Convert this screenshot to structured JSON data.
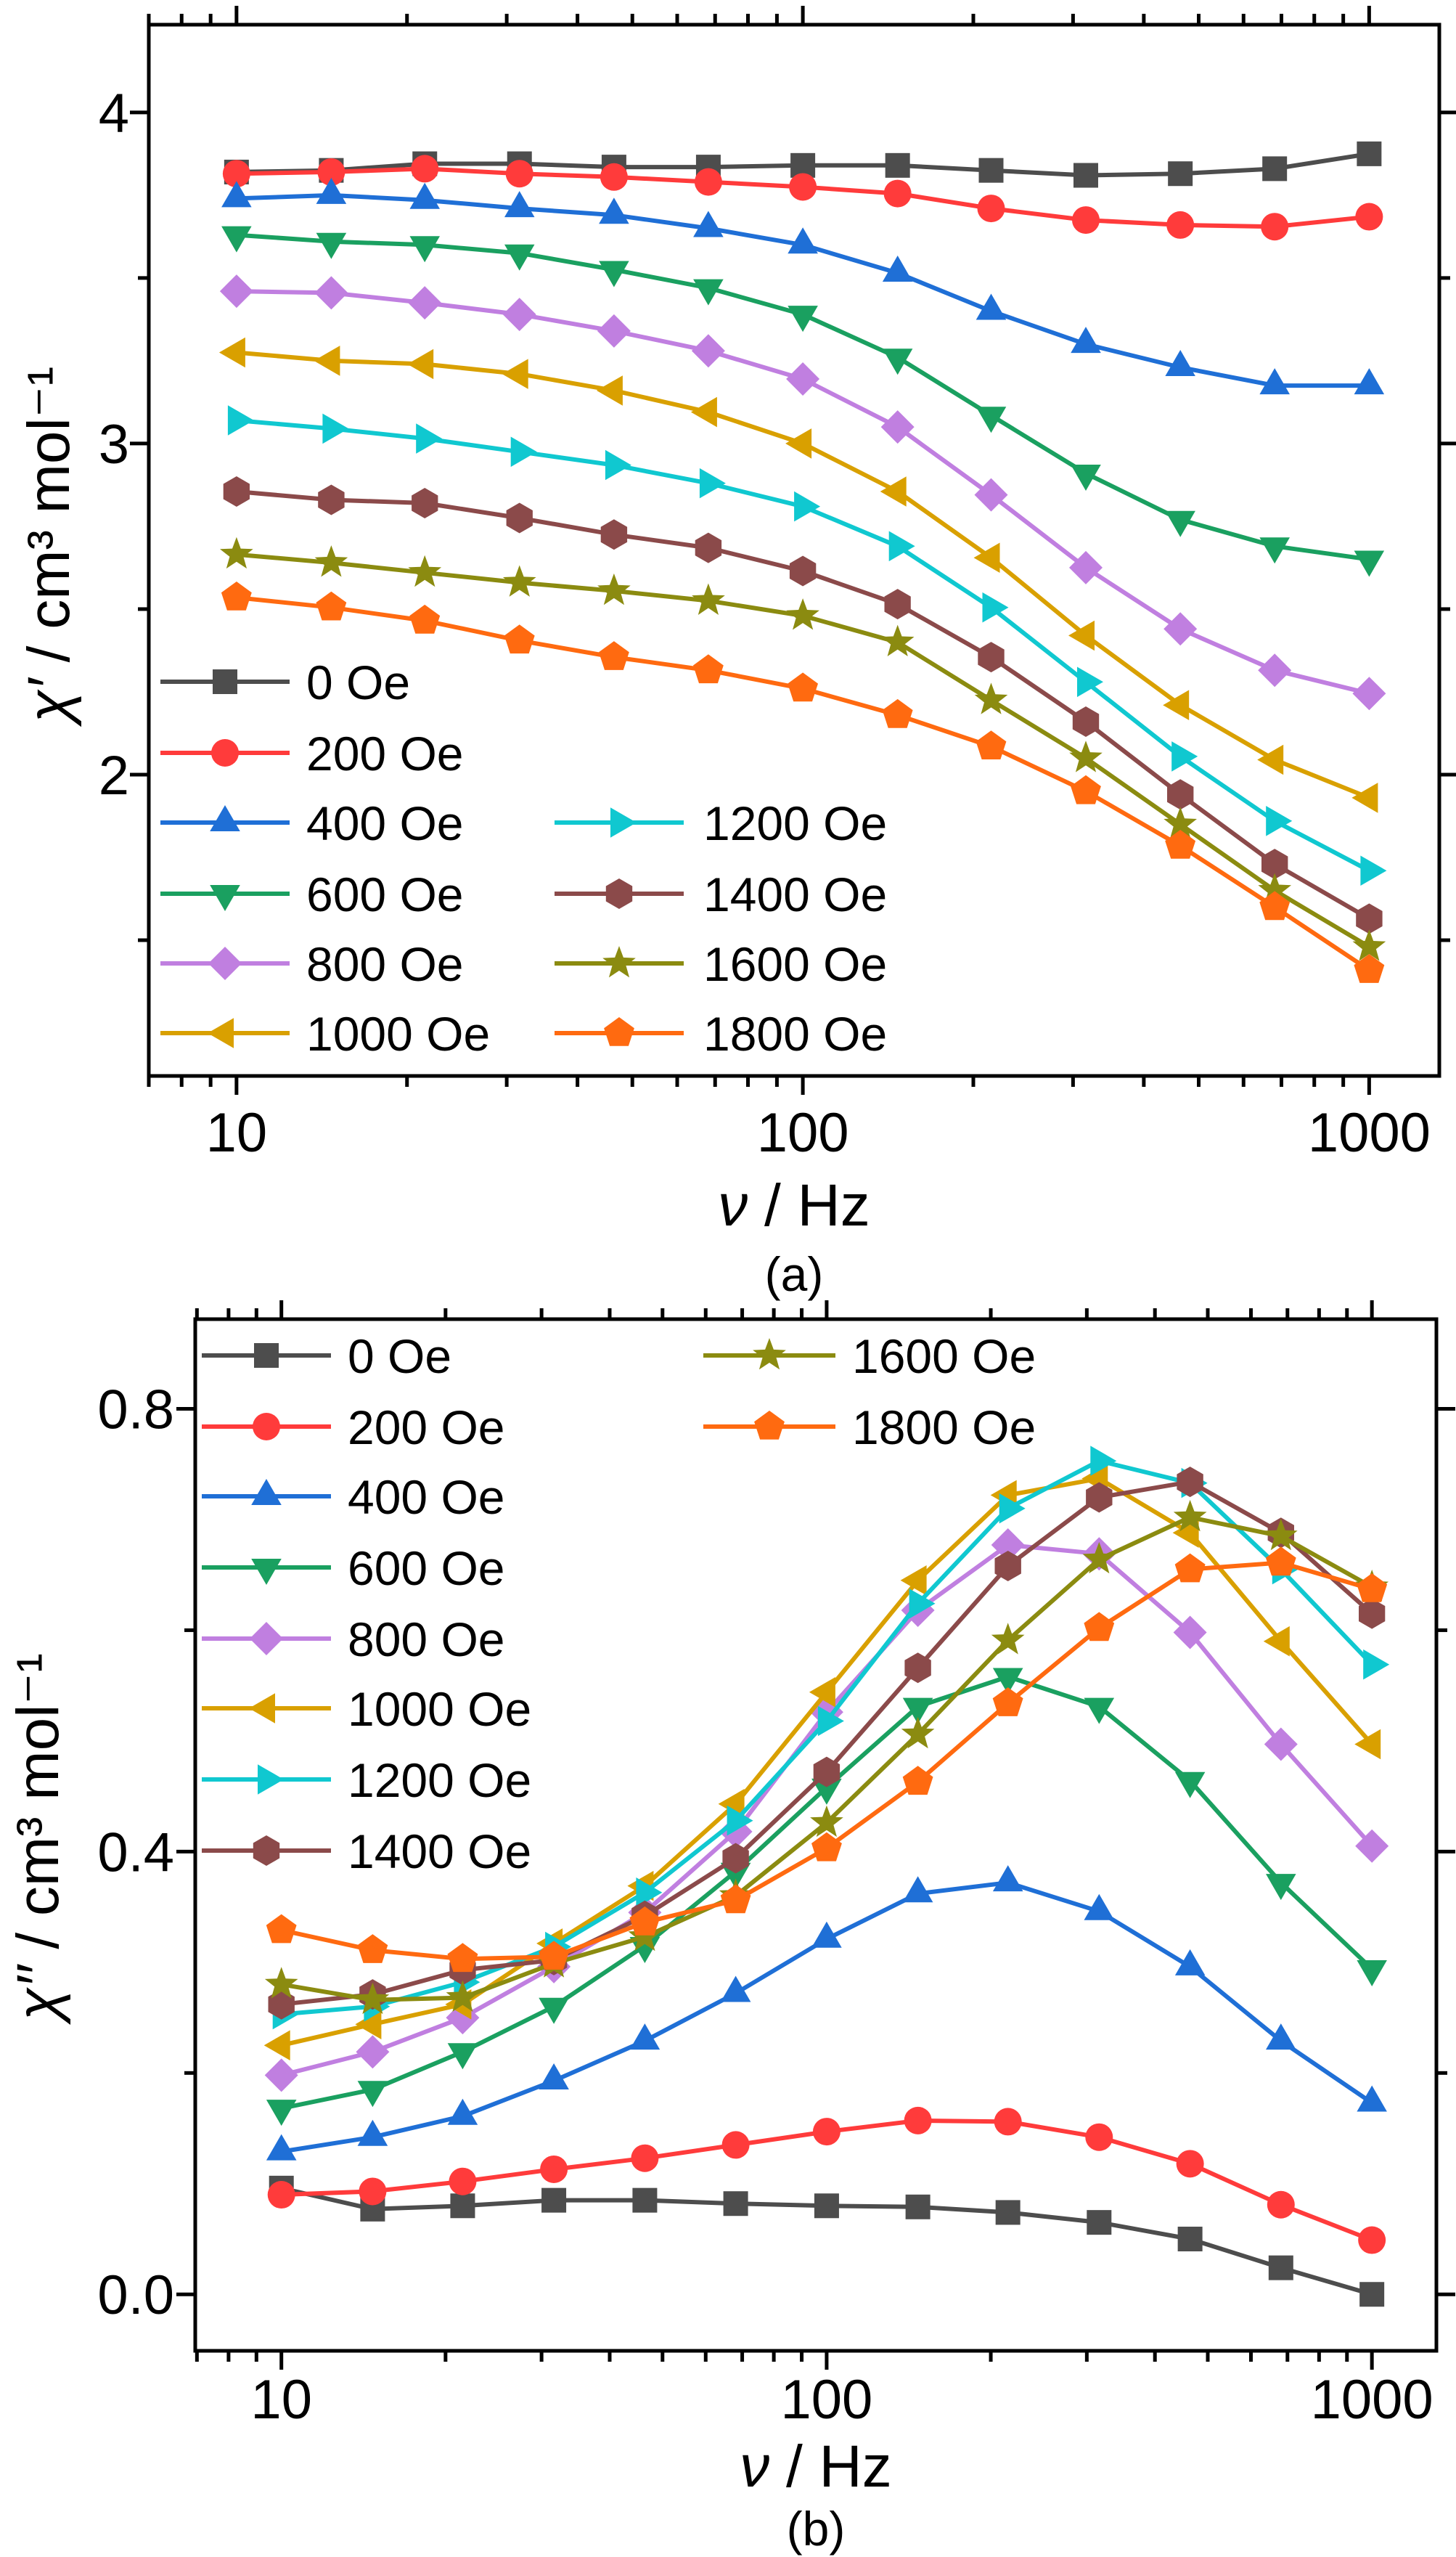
{
  "chart_data": [
    {
      "type": "line",
      "panel": "a",
      "caption": "(a)",
      "xlabel_sym": "ν",
      "xlabel_unit": " / Hz",
      "ylabel_sym": "χ′",
      "ylabel_unit": " / cm³ mol⁻¹",
      "xscale": "log",
      "xlim": [
        7,
        1330
      ],
      "ylim": [
        1.09,
        4.265
      ],
      "xticks": [
        10,
        100,
        1000
      ],
      "xtick_labels": [
        "10",
        "100",
        "1000"
      ],
      "yticks": [
        2,
        3,
        4
      ],
      "ytick_labels": [
        "2",
        "3",
        "4"
      ],
      "yminor": [
        1.5,
        2.5,
        3.5
      ],
      "legend": "bottom-left, two columns",
      "x": [
        10,
        14.7,
        21.5,
        31.6,
        46.4,
        68.1,
        100,
        147,
        215,
        316,
        464,
        681,
        1000
      ],
      "series": [
        {
          "name": "0 Oe",
          "color": "#4d4d4d",
          "marker": "square",
          "values": [
            3.82,
            3.825,
            3.845,
            3.845,
            3.835,
            3.835,
            3.84,
            3.84,
            3.825,
            3.81,
            3.815,
            3.83,
            3.875
          ]
        },
        {
          "name": "200 Oe",
          "color": "#ff3b3b",
          "marker": "circle",
          "values": [
            3.815,
            3.82,
            3.83,
            3.815,
            3.805,
            3.79,
            3.775,
            3.755,
            3.71,
            3.675,
            3.66,
            3.655,
            3.685
          ]
        },
        {
          "name": "400 Oe",
          "color": "#1f6fd6",
          "marker": "triangle-up",
          "values": [
            3.74,
            3.75,
            3.735,
            3.71,
            3.69,
            3.65,
            3.6,
            3.515,
            3.4,
            3.3,
            3.23,
            3.175,
            3.175
          ]
        },
        {
          "name": "600 Oe",
          "color": "#1aa060",
          "marker": "triangle-down",
          "values": [
            3.63,
            3.61,
            3.6,
            3.575,
            3.525,
            3.47,
            3.39,
            3.26,
            3.085,
            2.91,
            2.77,
            2.69,
            2.65
          ]
        },
        {
          "name": "800 Oe",
          "color": "#c07fe0",
          "marker": "diamond",
          "values": [
            3.46,
            3.455,
            3.425,
            3.39,
            3.34,
            3.28,
            3.195,
            3.05,
            2.845,
            2.625,
            2.44,
            2.315,
            2.245
          ]
        },
        {
          "name": "1000 Oe",
          "color": "#d9a000",
          "marker": "triangle-left",
          "values": [
            3.275,
            3.25,
            3.24,
            3.21,
            3.16,
            3.095,
            3.0,
            2.855,
            2.655,
            2.42,
            2.21,
            2.045,
            1.93
          ]
        },
        {
          "name": "1200 Oe",
          "color": "#10c8d0",
          "marker": "triangle-right",
          "values": [
            3.07,
            3.045,
            3.015,
            2.975,
            2.935,
            2.88,
            2.81,
            2.69,
            2.505,
            2.28,
            2.055,
            1.86,
            1.71
          ]
        },
        {
          "name": "1400 Oe",
          "color": "#8b4a4a",
          "marker": "hexagon",
          "values": [
            2.855,
            2.83,
            2.82,
            2.775,
            2.725,
            2.685,
            2.615,
            2.515,
            2.355,
            2.16,
            1.94,
            1.73,
            1.565
          ]
        },
        {
          "name": "1600 Oe",
          "color": "#8b8b10",
          "marker": "star",
          "values": [
            2.665,
            2.64,
            2.61,
            2.58,
            2.555,
            2.525,
            2.48,
            2.4,
            2.225,
            2.05,
            1.85,
            1.65,
            1.48
          ]
        },
        {
          "name": "1800 Oe",
          "color": "#ff6a10",
          "marker": "pentagon",
          "values": [
            2.535,
            2.505,
            2.465,
            2.405,
            2.355,
            2.315,
            2.26,
            2.18,
            2.085,
            1.95,
            1.785,
            1.6,
            1.41
          ]
        }
      ]
    },
    {
      "type": "line",
      "panel": "b",
      "caption": "(b)",
      "xlabel_sym": "ν",
      "xlabel_unit": " / Hz",
      "ylabel_sym": "χ′′",
      "ylabel_unit": " / cm³ mol⁻¹",
      "xscale": "log",
      "xlim": [
        6.95,
        1313
      ],
      "ylim": [
        -0.051,
        0.881
      ],
      "xticks": [
        10,
        100,
        1000
      ],
      "xtick_labels": [
        "10",
        "100",
        "1000"
      ],
      "yticks": [
        0.0,
        0.4,
        0.8
      ],
      "ytick_labels": [
        "0.0",
        "0.4",
        "0.8"
      ],
      "yminor": [
        0.2,
        0.6
      ],
      "legend": "top-left, two columns",
      "x": [
        10,
        14.7,
        21.5,
        31.6,
        46.4,
        68.1,
        100,
        147,
        215,
        316,
        464,
        681,
        1000
      ],
      "series": [
        {
          "name": "0 Oe",
          "color": "#4d4d4d",
          "marker": "square",
          "values": [
            0.096,
            0.077,
            0.08,
            0.085,
            0.085,
            0.082,
            0.08,
            0.079,
            0.074,
            0.065,
            0.05,
            0.024,
            0.0
          ]
        },
        {
          "name": "200 Oe",
          "color": "#ff3b3b",
          "marker": "circle",
          "values": [
            0.09,
            0.093,
            0.102,
            0.113,
            0.123,
            0.135,
            0.147,
            0.157,
            0.156,
            0.142,
            0.118,
            0.081,
            0.049
          ]
        },
        {
          "name": "400 Oe",
          "color": "#1f6fd6",
          "marker": "triangle-up",
          "values": [
            0.129,
            0.142,
            0.161,
            0.193,
            0.229,
            0.272,
            0.321,
            0.362,
            0.372,
            0.346,
            0.296,
            0.229,
            0.173
          ]
        },
        {
          "name": "600 Oe",
          "color": "#1aa060",
          "marker": "triangle-down",
          "values": [
            0.168,
            0.185,
            0.219,
            0.26,
            0.315,
            0.382,
            0.458,
            0.531,
            0.558,
            0.531,
            0.464,
            0.372,
            0.294
          ]
        },
        {
          "name": "800 Oe",
          "color": "#c07fe0",
          "marker": "diamond",
          "values": [
            0.198,
            0.219,
            0.25,
            0.296,
            0.345,
            0.418,
            0.526,
            0.618,
            0.677,
            0.669,
            0.598,
            0.497,
            0.405
          ]
        },
        {
          "name": "1000 Oe",
          "color": "#d9a000",
          "marker": "triangle-left",
          "values": [
            0.225,
            0.244,
            0.262,
            0.317,
            0.369,
            0.443,
            0.544,
            0.645,
            0.722,
            0.737,
            0.688,
            0.59,
            0.497
          ]
        },
        {
          "name": "1200 Oe",
          "color": "#10c8d0",
          "marker": "triangle-right",
          "values": [
            0.253,
            0.26,
            0.282,
            0.314,
            0.363,
            0.428,
            0.518,
            0.624,
            0.71,
            0.753,
            0.733,
            0.655,
            0.569
          ]
        },
        {
          "name": "1400 Oe",
          "color": "#8b4a4a",
          "marker": "hexagon",
          "values": [
            0.262,
            0.271,
            0.293,
            0.302,
            0.342,
            0.394,
            0.472,
            0.566,
            0.658,
            0.72,
            0.734,
            0.688,
            0.615
          ]
        },
        {
          "name": "1600 Oe",
          "color": "#8b8b10",
          "marker": "star",
          "values": [
            0.28,
            0.266,
            0.268,
            0.299,
            0.323,
            0.36,
            0.426,
            0.506,
            0.591,
            0.664,
            0.702,
            0.685,
            0.639
          ]
        },
        {
          "name": "1800 Oe",
          "color": "#ff6a10",
          "marker": "pentagon",
          "values": [
            0.329,
            0.311,
            0.303,
            0.305,
            0.336,
            0.356,
            0.403,
            0.463,
            0.534,
            0.602,
            0.655,
            0.661,
            0.637
          ]
        }
      ]
    }
  ]
}
